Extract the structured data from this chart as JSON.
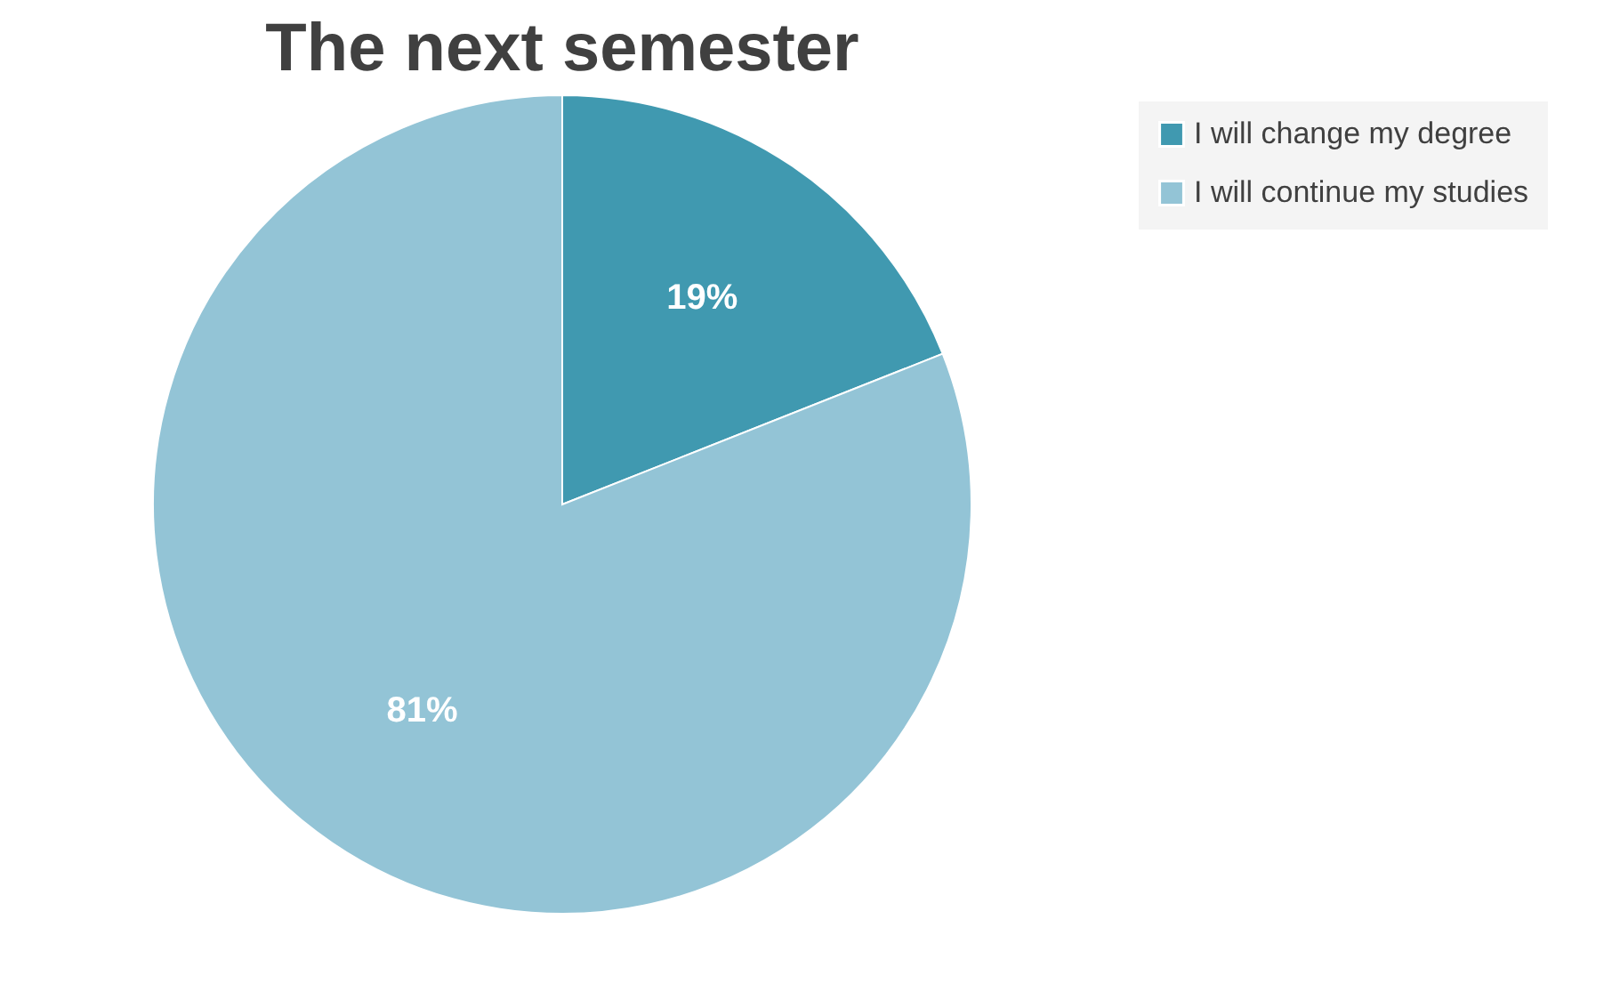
{
  "chart_data": {
    "type": "pie",
    "title": "The next semester",
    "categories": [
      "I will change my degree",
      "I will continue my studies"
    ],
    "values": [
      19,
      81
    ],
    "colors": [
      "#4099b0",
      "#93c4d6"
    ],
    "value_labels": [
      "19%",
      "81%"
    ],
    "legend": "right"
  }
}
